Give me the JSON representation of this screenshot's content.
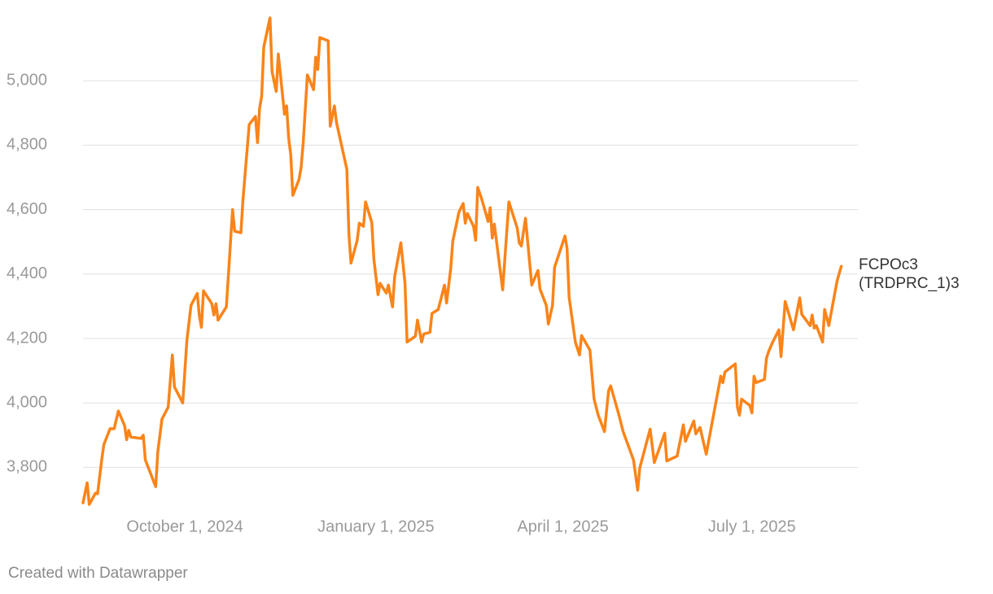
{
  "chart_data": {
    "type": "line",
    "x": [
      "2024-08-13",
      "2024-08-15",
      "2024-08-16",
      "2024-08-19",
      "2024-08-20",
      "2024-08-22",
      "2024-08-23",
      "2024-08-26",
      "2024-08-28",
      "2024-08-30",
      "2024-09-02",
      "2024-09-03",
      "2024-09-04",
      "2024-09-05",
      "2024-09-10",
      "2024-09-11",
      "2024-09-12",
      "2024-09-17",
      "2024-09-18",
      "2024-09-20",
      "2024-09-23",
      "2024-09-25",
      "2024-09-26",
      "2024-09-30",
      "2024-10-02",
      "2024-10-04",
      "2024-10-07",
      "2024-10-08",
      "2024-10-09",
      "2024-10-10",
      "2024-10-14",
      "2024-10-15",
      "2024-10-16",
      "2024-10-17",
      "2024-10-21",
      "2024-10-24",
      "2024-10-25",
      "2024-10-28",
      "2024-10-29",
      "2024-11-01",
      "2024-11-04",
      "2024-11-05",
      "2024-11-06",
      "2024-11-07",
      "2024-11-08",
      "2024-11-11",
      "2024-11-12",
      "2024-11-14",
      "2024-11-15",
      "2024-11-18",
      "2024-11-19",
      "2024-11-20",
      "2024-11-21",
      "2024-11-22",
      "2024-11-25",
      "2024-11-26",
      "2024-11-27",
      "2024-11-29",
      "2024-12-02",
      "2024-12-03",
      "2024-12-04",
      "2024-12-05",
      "2024-12-09",
      "2024-12-10",
      "2024-12-12",
      "2024-12-13",
      "2024-12-18",
      "2024-12-19",
      "2024-12-20",
      "2024-12-23",
      "2024-12-24",
      "2024-12-26",
      "2024-12-27",
      "2024-12-30",
      "2024-12-31",
      "2025-01-02",
      "2025-01-03",
      "2025-01-06",
      "2025-01-07",
      "2025-01-09",
      "2025-01-10",
      "2025-01-13",
      "2025-01-15",
      "2025-01-16",
      "2025-01-20",
      "2025-01-21",
      "2025-01-23",
      "2025-01-24",
      "2025-01-27",
      "2025-01-28",
      "2025-01-31",
      "2025-02-03",
      "2025-02-04",
      "2025-02-06",
      "2025-02-07",
      "2025-02-10",
      "2025-02-12",
      "2025-02-13",
      "2025-02-14",
      "2025-02-17",
      "2025-02-18",
      "2025-02-19",
      "2025-02-21",
      "2025-02-24",
      "2025-02-25",
      "2025-02-26",
      "2025-02-27",
      "2025-03-03",
      "2025-03-06",
      "2025-03-10",
      "2025-03-11",
      "2025-03-12",
      "2025-03-14",
      "2025-03-17",
      "2025-03-20",
      "2025-03-21",
      "2025-03-24",
      "2025-03-25",
      "2025-03-27",
      "2025-03-28",
      "2025-04-02",
      "2025-04-03",
      "2025-04-04",
      "2025-04-07",
      "2025-04-09",
      "2025-04-10",
      "2025-04-14",
      "2025-04-16",
      "2025-04-18",
      "2025-04-21",
      "2025-04-23",
      "2025-04-24",
      "2025-04-28",
      "2025-04-30",
      "2025-05-05",
      "2025-05-07",
      "2025-05-08",
      "2025-05-13",
      "2025-05-15",
      "2025-05-20",
      "2025-05-21",
      "2025-05-26",
      "2025-05-29",
      "2025-05-30",
      "2025-06-03",
      "2025-06-04",
      "2025-06-06",
      "2025-06-09",
      "2025-06-16",
      "2025-06-17",
      "2025-06-18",
      "2025-06-23",
      "2025-06-24",
      "2025-06-25",
      "2025-06-26",
      "2025-06-30",
      "2025-07-01",
      "2025-07-02",
      "2025-07-03",
      "2025-07-07",
      "2025-07-08",
      "2025-07-09",
      "2025-07-11",
      "2025-07-14",
      "2025-07-15",
      "2025-07-17",
      "2025-07-21",
      "2025-07-24",
      "2025-07-25",
      "2025-07-29",
      "2025-07-30",
      "2025-07-31",
      "2025-08-01",
      "2025-08-04",
      "2025-08-05",
      "2025-08-07",
      "2025-08-11",
      "2025-08-13"
    ],
    "series": [
      {
        "name": "FCPOc3 (TRDPRC_1)3",
        "color": "#fa8419",
        "values": [
          3690,
          3752,
          3685,
          3720,
          3718,
          3823,
          3870,
          3920,
          3920,
          3975,
          3930,
          3886,
          3915,
          3894,
          3890,
          3900,
          3823,
          3740,
          3848,
          3950,
          3987,
          4149,
          4050,
          4000,
          4194,
          4303,
          4340,
          4270,
          4235,
          4348,
          4308,
          4273,
          4308,
          4257,
          4298,
          4600,
          4533,
          4528,
          4631,
          4864,
          4889,
          4808,
          4914,
          4952,
          5104,
          5195,
          5028,
          4967,
          5083,
          4896,
          4922,
          4821,
          4770,
          4644,
          4694,
          4732,
          4808,
          5018,
          4972,
          5073,
          5035,
          5134,
          5124,
          4859,
          4922,
          4871,
          4725,
          4523,
          4434,
          4505,
          4558,
          4548,
          4624,
          4560,
          4447,
          4336,
          4371,
          4341,
          4366,
          4298,
          4391,
          4497,
          4371,
          4189,
          4207,
          4257,
          4189,
          4214,
          4219,
          4278,
          4290,
          4366,
          4310,
          4417,
          4502,
          4593,
          4619,
          4558,
          4588,
          4548,
          4505,
          4669,
          4631,
          4563,
          4606,
          4512,
          4555,
          4351,
          4624,
          4543,
          4497,
          4487,
          4573,
          4366,
          4411,
          4353,
          4303,
          4245,
          4303,
          4421,
          4518,
          4480,
          4328,
          4189,
          4149,
          4209,
          4164,
          4012,
          3962,
          3911,
          4038,
          4053,
          3962,
          3911,
          3823,
          3729,
          3798,
          3919,
          3815,
          3906,
          3820,
          3835,
          3932,
          3881,
          3944,
          3904,
          3924,
          3841,
          4083,
          4063,
          4096,
          4121,
          3987,
          3962,
          4012,
          3992,
          3969,
          4083,
          4063,
          4073,
          4139,
          4159,
          4189,
          4227,
          4144,
          4315,
          4227,
          4326,
          4275,
          4240,
          4273,
          4232,
          4240,
          4189,
          4290,
          4240,
          4379,
          4424
        ]
      }
    ],
    "xlim": [
      "2024-08-13",
      "2025-08-21"
    ],
    "xticks": [
      {
        "value": "2024-10-01",
        "label": "October 1, 2024"
      },
      {
        "value": "2025-01-01",
        "label": "January 1, 2025"
      },
      {
        "value": "2025-04-01",
        "label": "April 1, 2025"
      },
      {
        "value": "2025-07-01",
        "label": "July 1, 2025"
      }
    ],
    "ylim": [
      3700,
      5200
    ],
    "yticks": [
      {
        "value": 3800,
        "label": "3,800"
      },
      {
        "value": 4000,
        "label": "4,000"
      },
      {
        "value": 4200,
        "label": "4,200"
      },
      {
        "value": 4400,
        "label": "4,400"
      },
      {
        "value": 4600,
        "label": "4,600"
      },
      {
        "value": 4800,
        "label": "4,800"
      },
      {
        "value": 5000,
        "label": "5,000"
      }
    ],
    "grid": true,
    "credit": "Created with Datawrapper"
  }
}
